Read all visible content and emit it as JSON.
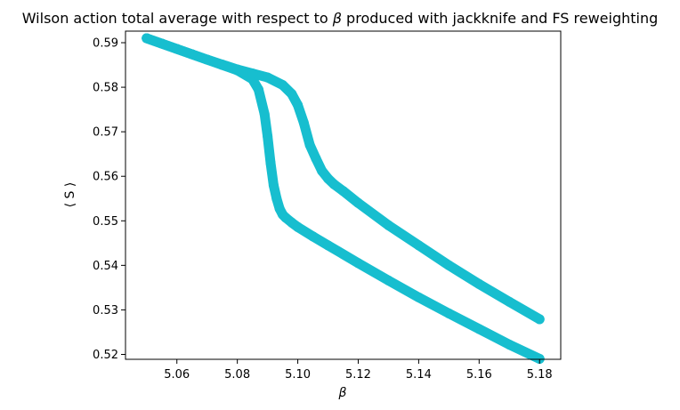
{
  "chart_data": {
    "type": "scatter",
    "title_prefix": "Wilson action total average with respect to ",
    "title_symbol": "β",
    "title_suffix": " produced with jackknife and FS reweighting",
    "xlabel": "β",
    "ylabel": "⟨ S ⟩",
    "xlim": [
      5.043,
      5.187
    ],
    "ylim": [
      0.5189,
      0.5926
    ],
    "xticks": [
      "5.06",
      "5.08",
      "5.10",
      "5.12",
      "5.14",
      "5.16",
      "5.18"
    ],
    "yticks": [
      "0.52",
      "0.53",
      "0.54",
      "0.55",
      "0.56",
      "0.57",
      "0.58",
      "0.59"
    ],
    "grid": false,
    "legend": "none",
    "marker_color": "#17becf",
    "series": [
      {
        "x": [
          5.05,
          5.055,
          5.06,
          5.065,
          5.07,
          5.075,
          5.08,
          5.085,
          5.087,
          5.089,
          5.09,
          5.091,
          5.092,
          5.093,
          5.094,
          5.095,
          5.096,
          5.098,
          5.1,
          5.105,
          5.11,
          5.12,
          5.13,
          5.14,
          5.15,
          5.16,
          5.17,
          5.18
        ],
        "y": [
          0.591,
          0.5898,
          0.5886,
          0.5874,
          0.5862,
          0.585,
          0.5838,
          0.5818,
          0.5795,
          0.574,
          0.569,
          0.563,
          0.558,
          0.555,
          0.5527,
          0.5514,
          0.5507,
          0.5496,
          0.5486,
          0.5465,
          0.5445,
          0.5405,
          0.5366,
          0.5328,
          0.5292,
          0.5257,
          0.5222,
          0.519
        ]
      },
      {
        "x": [
          5.05,
          5.055,
          5.06,
          5.065,
          5.07,
          5.075,
          5.08,
          5.085,
          5.09,
          5.095,
          5.098,
          5.1,
          5.102,
          5.104,
          5.106,
          5.108,
          5.11,
          5.112,
          5.115,
          5.12,
          5.13,
          5.14,
          5.15,
          5.16,
          5.17,
          5.18
        ],
        "y": [
          0.591,
          0.5898,
          0.5886,
          0.5874,
          0.5862,
          0.5851,
          0.584,
          0.5831,
          0.5822,
          0.5805,
          0.5785,
          0.576,
          0.572,
          0.567,
          0.564,
          0.5612,
          0.5595,
          0.5582,
          0.5567,
          0.554,
          0.549,
          0.5445,
          0.54,
          0.5358,
          0.5318,
          0.5279
        ]
      }
    ]
  }
}
